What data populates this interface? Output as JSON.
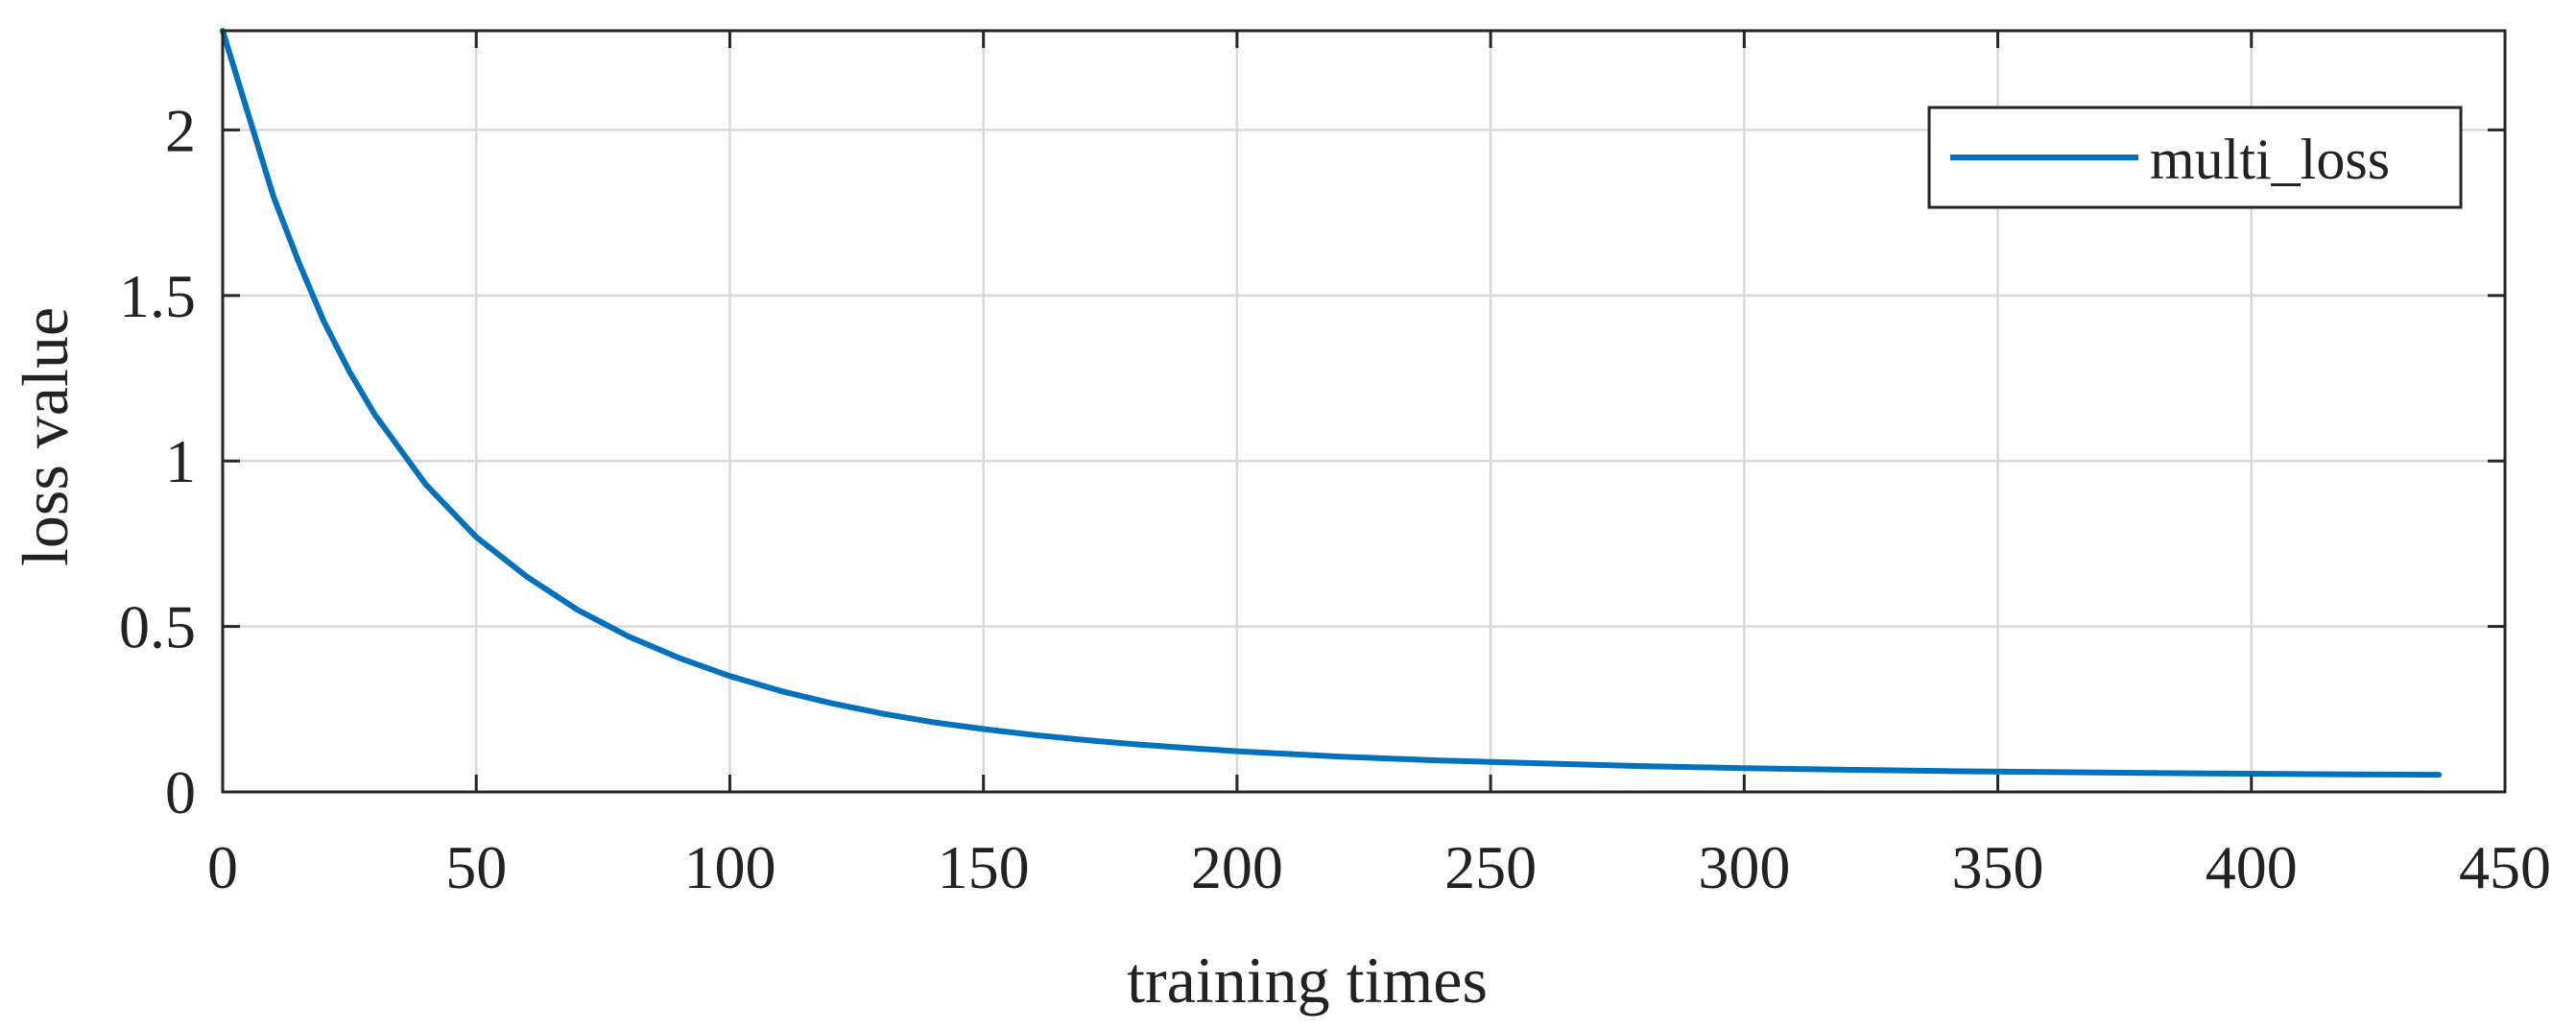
{
  "chart_data": {
    "type": "line",
    "xlabel": "training times",
    "ylabel": "loss value",
    "xlim": [
      0,
      450
    ],
    "ylim": [
      0,
      2.3
    ],
    "x_ticks": [
      0,
      50,
      100,
      150,
      200,
      250,
      300,
      350,
      400,
      450
    ],
    "y_ticks": [
      0,
      0.5,
      1,
      1.5,
      2
    ],
    "x_tick_labels": [
      "0",
      "50",
      "100",
      "150",
      "200",
      "250",
      "300",
      "350",
      "400",
      "450"
    ],
    "y_tick_labels": [
      "0",
      "0.5",
      "1",
      "1.5",
      "2"
    ],
    "grid": true,
    "legend_position": "top-right",
    "series": [
      {
        "name": "multi_loss",
        "color": "#0072BD",
        "x": [
          0,
          5,
          10,
          15,
          20,
          25,
          30,
          40,
          50,
          60,
          70,
          80,
          90,
          100,
          110,
          120,
          130,
          140,
          150,
          160,
          170,
          180,
          190,
          200,
          220,
          240,
          260,
          280,
          300,
          320,
          340,
          360,
          380,
          400,
          420,
          437
        ],
        "y": [
          2.33,
          2.05,
          1.8,
          1.6,
          1.42,
          1.27,
          1.14,
          0.93,
          0.77,
          0.65,
          0.55,
          0.47,
          0.405,
          0.35,
          0.305,
          0.268,
          0.237,
          0.211,
          0.19,
          0.172,
          0.157,
          0.144,
          0.133,
          0.123,
          0.107,
          0.095,
          0.086,
          0.078,
          0.072,
          0.067,
          0.063,
          0.06,
          0.057,
          0.055,
          0.053,
          0.052
        ]
      }
    ]
  }
}
